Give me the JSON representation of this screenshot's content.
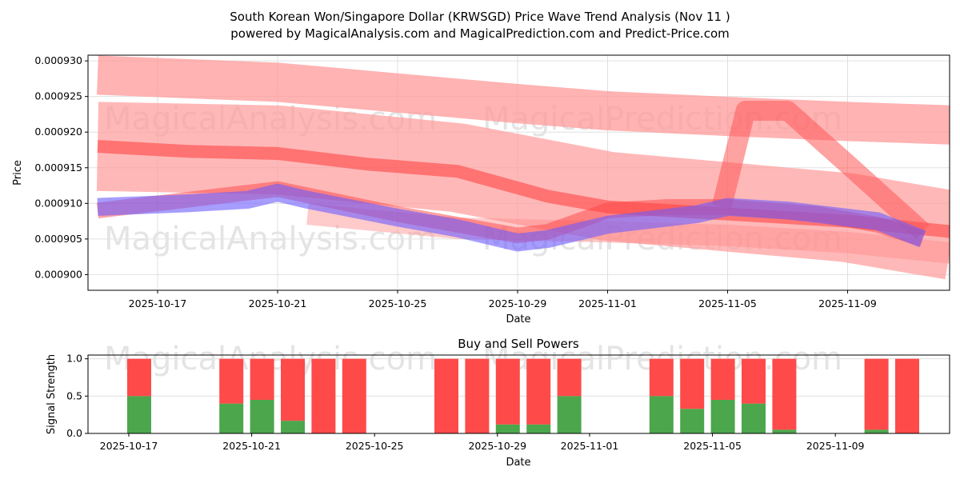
{
  "title_line1": "South Korean Won/Singapore Dollar (KRWSGD) Price Wave Trend Analysis (Nov 11 )",
  "title_line2": "powered by MagicalAnalysis.com and MagicalPrediction.com and Predict-Price.com",
  "watermarks": [
    "MagicalAnalysis.com",
    "MagicalPrediction.com"
  ],
  "colors": {
    "band_red": "#ff6b6b",
    "band_dark_red": "#ff3b3b",
    "band_blue": "#6a5cff",
    "buy": "#4ca64c",
    "sell": "#ff4a4a",
    "grid": "#e0e0e0"
  },
  "chart_data": [
    {
      "type": "line",
      "title": "",
      "xlabel": "Date",
      "ylabel": "Price",
      "ylim": [
        0.0008978,
        0.0009308
      ],
      "xlim": [
        "2025-10-14.7",
        "2025-11-13.4"
      ],
      "yticks": [
        "0.000900",
        "0.000905",
        "0.000910",
        "0.000915",
        "0.000920",
        "0.000925",
        "0.000930"
      ],
      "ytick_values": [
        0.0009,
        0.000905,
        0.00091,
        0.000915,
        0.00092,
        0.000925,
        0.00093
      ],
      "xticks": [
        "2025-10-17",
        "2025-10-21",
        "2025-10-25",
        "2025-10-29",
        "2025-11-01",
        "2025-11-05",
        "2025-11-09"
      ],
      "grid": true,
      "series": [
        {
          "name": "upper-wave-band",
          "color": "#ff9a9a",
          "opacity": 0.75,
          "thickness": 5.5e-06,
          "x": [
            "2025-10-15",
            "2025-10-21",
            "2025-10-25",
            "2025-10-29",
            "2025-11-01",
            "2025-11-05",
            "2025-11-09",
            "2025-11-12.5"
          ],
          "y": [
            0.000928,
            0.000927,
            0.0009255,
            0.000924,
            0.000923,
            0.0009222,
            0.0009215,
            0.000921
          ]
        },
        {
          "name": "wide-wave-band",
          "color": "#ff9a9a",
          "opacity": 0.7,
          "thickness": 1.25e-05,
          "x": [
            "2025-10-15",
            "2025-10-21",
            "2025-10-27",
            "2025-11-01",
            "2025-11-05",
            "2025-11-09",
            "2025-11-12.5"
          ],
          "y": [
            0.000918,
            0.0009175,
            0.000915,
            0.000911,
            0.0009095,
            0.000908,
            0.0009055
          ]
        },
        {
          "name": "mid-trend-line",
          "color": "#ff5555",
          "opacity": 0.7,
          "thickness": 1.8e-06,
          "x": [
            "2025-10-15",
            "2025-10-18",
            "2025-10-21",
            "2025-10-24",
            "2025-10-27",
            "2025-10-30",
            "2025-11-01",
            "2025-11-05",
            "2025-11-09",
            "2025-11-12.5"
          ],
          "y": [
            0.000918,
            0.0009173,
            0.000917,
            0.0009155,
            0.0009145,
            0.000911,
            0.0009095,
            0.0009085,
            0.0009075,
            0.000906
          ]
        },
        {
          "name": "lower-wave-band",
          "color": "#ff8a8a",
          "opacity": 0.45,
          "thickness": 3e-06,
          "x": [
            "2025-10-22",
            "2025-10-27",
            "2025-11-01",
            "2025-11-05",
            "2025-11-09",
            "2025-11-12.5"
          ],
          "y": [
            0.0009085,
            0.0009065,
            0.000906,
            0.0009055,
            0.0009045,
            0.000903
          ]
        },
        {
          "name": "spike-band",
          "color": "#ff5555",
          "opacity": 0.55,
          "thickness": 2.8e-06,
          "x": [
            "2025-11-04.8",
            "2025-11-05.6",
            "2025-11-07",
            "2025-11-09",
            "2025-11-11.5"
          ],
          "y": [
            0.0009095,
            0.000923,
            0.000923,
            0.0009155,
            0.000906
          ]
        },
        {
          "name": "red-price-wave",
          "color": "#ff4444",
          "opacity": 0.5,
          "thickness": 2.2e-06,
          "x": [
            "2025-10-15",
            "2025-10-18",
            "2025-10-21",
            "2025-10-25",
            "2025-10-29",
            "2025-10-30",
            "2025-11-01",
            "2025-11-03",
            "2025-11-05",
            "2025-11-08",
            "2025-11-10",
            "2025-11-11.5"
          ],
          "y": [
            0.000909,
            0.0009105,
            0.000912,
            0.0009085,
            0.0009055,
            0.000906,
            0.000909,
            0.0009095,
            0.0009095,
            0.0009085,
            0.000907,
            0.000905
          ]
        },
        {
          "name": "blue-price-wave",
          "color": "#6a5cff",
          "opacity": 0.6,
          "thickness": 2.5e-06,
          "x": [
            "2025-10-15",
            "2025-10-18",
            "2025-10-20",
            "2025-10-21",
            "2025-10-22",
            "2025-10-25",
            "2025-10-27",
            "2025-10-29",
            "2025-10-30",
            "2025-11-01",
            "2025-11-04",
            "2025-11-05",
            "2025-11-07",
            "2025-11-10",
            "2025-11-11.5"
          ],
          "y": [
            0.0009095,
            0.00091,
            0.0009105,
            0.0009115,
            0.0009105,
            0.000908,
            0.0009065,
            0.0009045,
            0.000905,
            0.000907,
            0.0009085,
            0.0009095,
            0.000909,
            0.0009075,
            0.000905
          ]
        }
      ]
    },
    {
      "type": "bar",
      "title": "Buy and Sell Powers",
      "xlabel": "Date",
      "ylabel": "Signal Strength",
      "ylim": [
        0,
        1.05
      ],
      "yticks": [
        "0.0",
        "0.5",
        "1.0"
      ],
      "ytick_values": [
        0,
        0.5,
        1.0
      ],
      "xticks": [
        "2025-10-17",
        "2025-10-21",
        "2025-10-25",
        "2025-10-29",
        "2025-11-01",
        "2025-11-05",
        "2025-11-09"
      ],
      "categories": [
        "2025-10-17",
        "2025-10-20",
        "2025-10-21",
        "2025-10-22",
        "2025-10-23",
        "2025-10-24",
        "2025-10-27",
        "2025-10-28",
        "2025-10-29",
        "2025-10-30",
        "2025-10-31",
        "2025-11-03",
        "2025-11-04",
        "2025-11-05",
        "2025-11-06",
        "2025-11-07",
        "2025-11-10",
        "2025-11-11"
      ],
      "series": [
        {
          "name": "Buy",
          "color": "#4ca64c",
          "values": [
            0.5,
            0.4,
            0.45,
            0.17,
            0,
            0,
            0,
            0,
            0.12,
            0.12,
            0.5,
            0.5,
            0.33,
            0.45,
            0.4,
            0.05,
            0.05,
            0
          ]
        },
        {
          "name": "Sell",
          "color": "#ff4a4a",
          "values": [
            0.5,
            0.6,
            0.55,
            0.83,
            1,
            1,
            1,
            1,
            0.88,
            0.88,
            0.5,
            0.5,
            0.67,
            0.55,
            0.6,
            0.95,
            0.95,
            1
          ]
        }
      ]
    }
  ]
}
